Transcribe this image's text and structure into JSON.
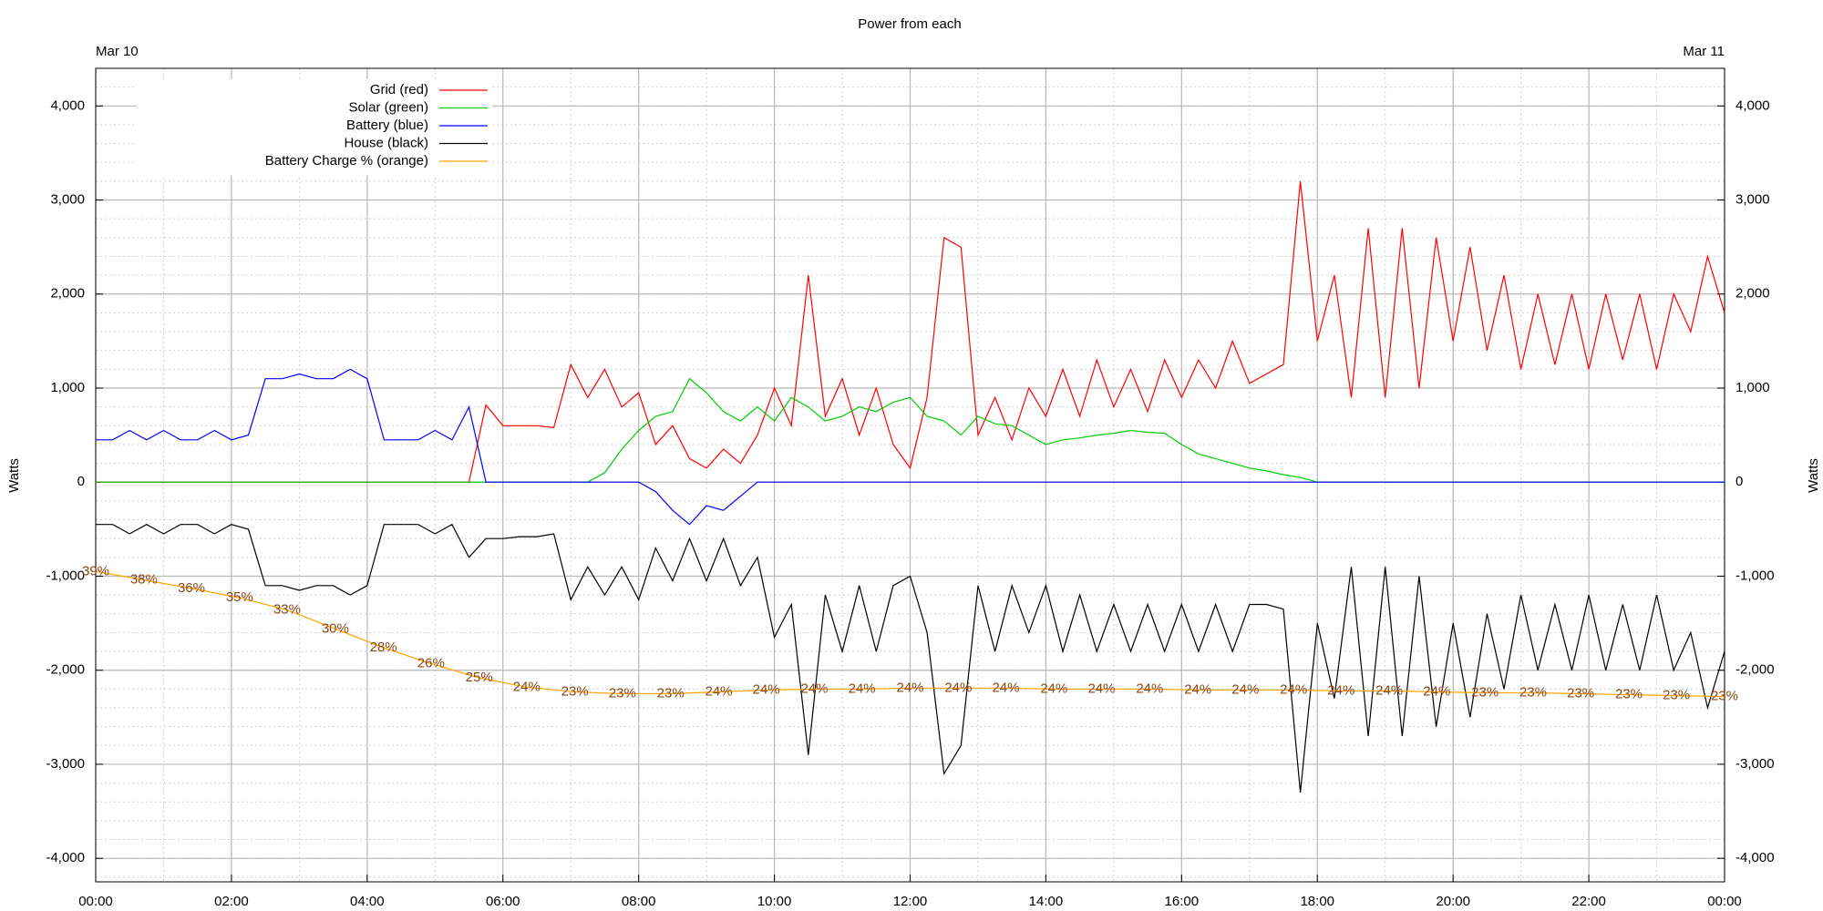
{
  "chart_data": {
    "type": "line",
    "title": "Power from each",
    "x2ticks": [
      {
        "value": 0,
        "label": "Mar 10"
      },
      {
        "value": 24,
        "label": "Mar 11"
      }
    ],
    "xlim": [
      0,
      24
    ],
    "xticks": [
      {
        "value": 0,
        "label": "00:00"
      },
      {
        "value": 2,
        "label": "02:00"
      },
      {
        "value": 4,
        "label": "04:00"
      },
      {
        "value": 6,
        "label": "06:00"
      },
      {
        "value": 8,
        "label": "08:00"
      },
      {
        "value": 10,
        "label": "10:00"
      },
      {
        "value": 12,
        "label": "12:00"
      },
      {
        "value": 14,
        "label": "14:00"
      },
      {
        "value": 16,
        "label": "16:00"
      },
      {
        "value": 18,
        "label": "18:00"
      },
      {
        "value": 20,
        "label": "20:00"
      },
      {
        "value": 22,
        "label": "22:00"
      },
      {
        "value": 24,
        "label": "00:00"
      }
    ],
    "ylim": [
      -4250,
      4400
    ],
    "yticks": [
      {
        "value": -4000,
        "label": "-4,000"
      },
      {
        "value": -3000,
        "label": "-3,000"
      },
      {
        "value": -2000,
        "label": "-2,000"
      },
      {
        "value": -1000,
        "label": "-1,000"
      },
      0,
      {
        "value": 1000,
        "label": "1,000"
      },
      {
        "value": 2000,
        "label": "2,000"
      },
      {
        "value": 3000,
        "label": "3,000"
      },
      {
        "value": 4000,
        "label": "4,000"
      }
    ],
    "y2lim": [
      -4250,
      4400
    ],
    "y2ticks": [
      {
        "value": -4000,
        "label": "-4,000"
      },
      {
        "value": -3000,
        "label": "-3,000"
      },
      {
        "value": -2000,
        "label": "-2,000"
      },
      {
        "value": -1000,
        "label": "-1,000"
      },
      0,
      {
        "value": 1000,
        "label": "1,000"
      },
      {
        "value": 2000,
        "label": "2,000"
      },
      {
        "value": 3000,
        "label": "3,000"
      },
      {
        "value": 4000,
        "label": "4,000"
      }
    ],
    "ylabel": "Watts",
    "y2label": "Watts",
    "grid": true,
    "minor_grid": {
      "x_every": 1,
      "y_every": 200
    },
    "legend": "top-left",
    "x": [
      0,
      0.25,
      0.5,
      0.75,
      1,
      1.25,
      1.5,
      1.75,
      2,
      2.25,
      2.5,
      2.75,
      3,
      3.25,
      3.5,
      3.75,
      4,
      4.25,
      4.5,
      4.75,
      5,
      5.25,
      5.5,
      5.75,
      6,
      6.25,
      6.5,
      6.75,
      7,
      7.25,
      7.5,
      7.75,
      8,
      8.25,
      8.5,
      8.75,
      9,
      9.25,
      9.5,
      9.75,
      10,
      10.25,
      10.5,
      10.75,
      11,
      11.25,
      11.5,
      11.75,
      12,
      12.25,
      12.5,
      12.75,
      13,
      13.25,
      13.5,
      13.75,
      14,
      14.25,
      14.5,
      14.75,
      15,
      15.25,
      15.5,
      15.75,
      16,
      16.25,
      16.5,
      16.75,
      17,
      17.25,
      17.5,
      17.75,
      18,
      18.25,
      18.5,
      18.75,
      19,
      19.25,
      19.5,
      19.75,
      20,
      20.25,
      20.5,
      20.75,
      21,
      21.25,
      21.5,
      21.75,
      22,
      22.25,
      22.5,
      22.75,
      23,
      23.25,
      23.5,
      23.75,
      24
    ],
    "series": [
      {
        "name": "Grid (red)",
        "color": "#ff0000",
        "values": [
          0,
          0,
          0,
          0,
          0,
          0,
          0,
          0,
          0,
          0,
          0,
          0,
          0,
          0,
          0,
          0,
          0,
          0,
          0,
          0,
          0,
          0,
          0,
          820,
          600,
          600,
          600,
          580,
          1250,
          900,
          1200,
          800,
          950,
          400,
          600,
          250,
          150,
          350,
          200,
          500,
          1000,
          600,
          2200,
          700,
          1100,
          500,
          1000,
          400,
          150,
          900,
          2600,
          2500,
          500,
          900,
          450,
          1000,
          700,
          1200,
          700,
          1300,
          800,
          1200,
          750,
          1300,
          900,
          1300,
          1000,
          1500,
          1050,
          1150,
          1250,
          3200,
          1500,
          2200,
          900,
          2700,
          900,
          2700,
          1000,
          2600,
          1500,
          2500,
          1400,
          2200,
          1200,
          2000,
          1250,
          2000,
          1200,
          2000,
          1300,
          2000,
          1200,
          2000,
          1600,
          2400,
          1800
        ]
      },
      {
        "name": "Solar (green)",
        "color": "#00cc00",
        "values": [
          0,
          0,
          0,
          0,
          0,
          0,
          0,
          0,
          0,
          0,
          0,
          0,
          0,
          0,
          0,
          0,
          0,
          0,
          0,
          0,
          0,
          0,
          0,
          0,
          0,
          0,
          0,
          0,
          0,
          0,
          100,
          350,
          550,
          700,
          750,
          1100,
          950,
          750,
          650,
          800,
          650,
          900,
          800,
          650,
          700,
          800,
          750,
          850,
          900,
          700,
          650,
          500,
          700,
          620,
          600,
          500,
          400,
          450,
          470,
          500,
          520,
          550,
          530,
          520,
          400,
          300,
          250,
          200,
          150,
          120,
          80,
          50,
          0,
          0,
          0,
          0,
          0,
          0,
          0,
          0,
          0,
          0,
          0,
          0,
          0,
          0,
          0,
          0,
          0,
          0,
          0,
          0,
          0,
          0,
          0,
          0,
          0
        ]
      },
      {
        "name": "Battery (blue)",
        "color": "#0000ff",
        "values": [
          450,
          450,
          550,
          450,
          550,
          450,
          450,
          550,
          450,
          500,
          1100,
          1100,
          1150,
          1100,
          1100,
          1200,
          1100,
          450,
          450,
          450,
          550,
          450,
          800,
          0,
          0,
          0,
          0,
          0,
          0,
          0,
          0,
          0,
          0,
          -100,
          -300,
          -450,
          -250,
          -300,
          -150,
          0,
          0,
          0,
          0,
          0,
          0,
          0,
          0,
          0,
          0,
          0,
          0,
          0,
          0,
          0,
          0,
          0,
          0,
          0,
          0,
          0,
          0,
          0,
          0,
          0,
          0,
          0,
          0,
          0,
          0,
          0,
          0,
          0,
          0,
          0,
          0,
          0,
          0,
          0,
          0,
          0,
          0,
          0,
          0,
          0,
          0,
          0,
          0,
          0,
          0,
          0,
          0,
          0,
          0,
          0,
          0,
          0,
          0
        ]
      },
      {
        "name": "House (black)",
        "color": "#000000",
        "values": [
          -450,
          -450,
          -550,
          -450,
          -550,
          -450,
          -450,
          -550,
          -450,
          -500,
          -1100,
          -1100,
          -1150,
          -1100,
          -1100,
          -1200,
          -1100,
          -450,
          -450,
          -450,
          -550,
          -450,
          -800,
          -600,
          -600,
          -580,
          -580,
          -550,
          -1250,
          -900,
          -1200,
          -900,
          -1250,
          -700,
          -1050,
          -600,
          -1050,
          -600,
          -1100,
          -800,
          -1650,
          -1300,
          -2900,
          -1200,
          -1800,
          -1100,
          -1800,
          -1100,
          -1000,
          -1600,
          -3100,
          -2800,
          -1100,
          -1800,
          -1100,
          -1600,
          -1100,
          -1800,
          -1200,
          -1800,
          -1300,
          -1800,
          -1300,
          -1800,
          -1300,
          -1800,
          -1300,
          -1800,
          -1300,
          -1300,
          -1350,
          -3300,
          -1500,
          -2300,
          -900,
          -2700,
          -900,
          -2700,
          -1000,
          -2600,
          -1500,
          -2500,
          -1400,
          -2200,
          -1200,
          -2000,
          -1300,
          -2000,
          -1200,
          -2000,
          -1300,
          -2000,
          -1200,
          -2000,
          -1600,
          -2400,
          -1800
        ]
      },
      {
        "name": "Battery Charge % (orange)",
        "color": "#ffa500",
        "label_color": "#8b4513",
        "x": [
          0,
          0.71,
          1.41,
          2.12,
          2.82,
          3.53,
          4.24,
          4.94,
          5.65,
          6.35,
          7.06,
          7.76,
          8.47,
          9.18,
          9.88,
          10.59,
          11.29,
          12,
          12.71,
          13.41,
          14.12,
          14.82,
          15.53,
          16.24,
          16.94,
          17.65,
          18.35,
          19.06,
          19.76,
          20.47,
          21.18,
          21.88,
          22.59,
          23.29,
          24
        ],
        "values": [
          -950,
          -1040,
          -1130,
          -1230,
          -1360,
          -1560,
          -1760,
          -1930,
          -2080,
          -2180,
          -2230,
          -2250,
          -2250,
          -2230,
          -2210,
          -2200,
          -2200,
          -2190,
          -2190,
          -2190,
          -2200,
          -2200,
          -2200,
          -2210,
          -2210,
          -2210,
          -2220,
          -2220,
          -2230,
          -2240,
          -2240,
          -2250,
          -2260,
          -2270,
          -2280
        ],
        "point_labels": [
          "39%",
          "38%",
          "36%",
          "35%",
          "33%",
          "30%",
          "28%",
          "26%",
          "25%",
          "24%",
          "23%",
          "23%",
          "23%",
          "24%",
          "24%",
          "24%",
          "24%",
          "24%",
          "24%",
          "24%",
          "24%",
          "24%",
          "24%",
          "24%",
          "24%",
          "24%",
          "24%",
          "24%",
          "24%",
          "23%",
          "23%",
          "23%",
          "23%",
          "23%",
          "23%"
        ]
      }
    ]
  }
}
